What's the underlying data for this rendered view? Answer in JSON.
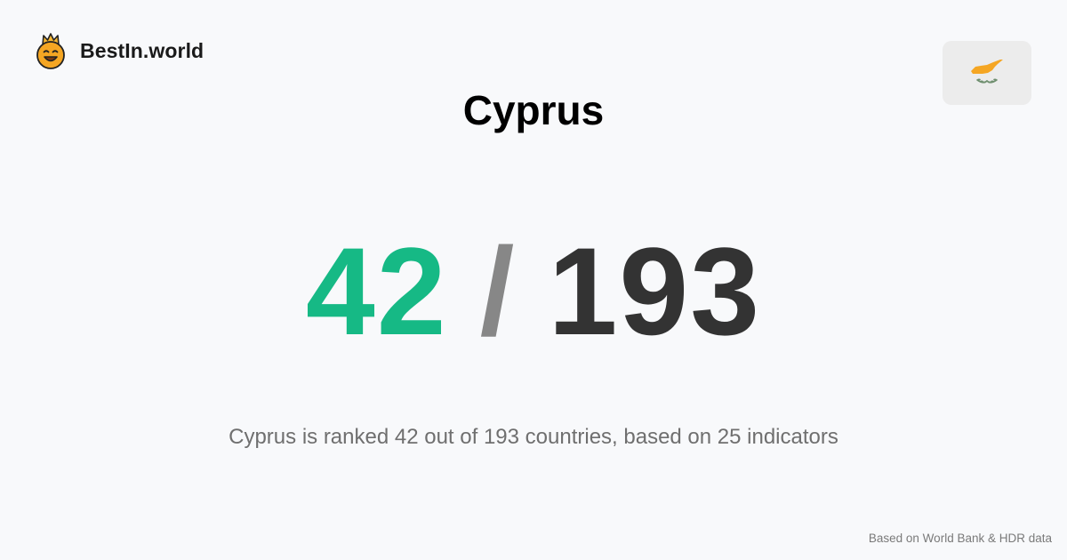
{
  "brand": {
    "name": "BestIn.world",
    "logo_icon": "crowned-smiley-icon"
  },
  "flag": {
    "country": "Cyprus",
    "icon": "cyprus-flag-icon",
    "map_color": "#f5a623",
    "branch_color": "#6f8f6f"
  },
  "title": "Cyprus",
  "rank": {
    "value": "42",
    "separator": "/",
    "total": "193",
    "value_color": "#16b985",
    "separator_color": "#878787",
    "total_color": "#333333"
  },
  "summary": "Cyprus is ranked 42 out of 193 countries, based on 25 indicators",
  "source_note": "Based on World Bank & HDR data"
}
